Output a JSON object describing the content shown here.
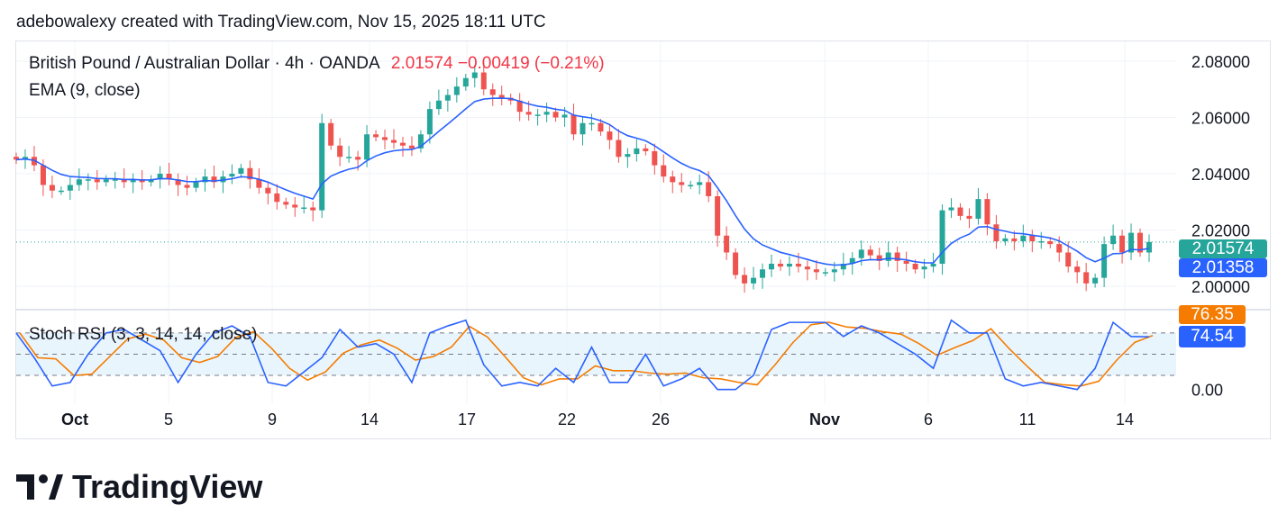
{
  "caption": "adebowalexy created with TradingView.com, Nov 15, 2025 18:11 UTC",
  "legend": {
    "symbol": "British Pound / Australian Dollar · 4h · OANDA",
    "price": "2.01574",
    "change": "−0.00419 (−0.21%)",
    "ema": "EMA (9, close)",
    "stoch": "Stoch RSI (3, 3, 14, 14, close)"
  },
  "badges": {
    "last_price": "2.01574",
    "ema_value": "2.01358",
    "stoch_d": "76.35",
    "stoch_k": "74.54"
  },
  "colors": {
    "up": "#26a69a",
    "down": "#ef5350",
    "ema": "#2962ff",
    "k": "#2962ff",
    "d": "#f57c00",
    "last": "#26a69a",
    "band": "#e3f2fd"
  },
  "logo": {
    "text": "TradingView"
  },
  "chart_data": [
    {
      "type": "candlestick",
      "title": "British Pound / Australian Dollar · 4h · OANDA",
      "yticks": [
        "2.08000",
        "2.06000",
        "2.04000",
        "2.02000",
        "2.00000"
      ],
      "ylim": [
        2.0,
        2.08
      ],
      "xticks": [
        "Oct",
        "5",
        "9",
        "14",
        "17",
        "22",
        "26",
        "Nov",
        "6",
        "11",
        "14"
      ],
      "close": [
        2.045,
        2.046,
        2.043,
        2.036,
        2.034,
        2.034,
        2.036,
        2.038,
        2.038,
        2.037,
        2.038,
        2.038,
        2.037,
        2.038,
        2.037,
        2.038,
        2.04,
        2.038,
        2.036,
        2.035,
        2.037,
        2.039,
        2.037,
        2.039,
        2.04,
        2.042,
        2.038,
        2.035,
        2.033,
        2.03,
        2.029,
        2.028,
        2.028,
        2.027,
        2.058,
        2.05,
        2.046,
        2.046,
        2.045,
        2.054,
        2.053,
        2.052,
        2.051,
        2.05,
        2.049,
        2.054,
        2.063,
        2.066,
        2.068,
        2.071,
        2.074,
        2.076,
        2.07,
        2.068,
        2.067,
        2.066,
        2.062,
        2.061,
        2.061,
        2.062,
        2.06,
        2.061,
        2.054,
        2.058,
        2.058,
        2.055,
        2.052,
        2.046,
        2.047,
        2.049,
        2.048,
        2.043,
        2.039,
        2.037,
        2.036,
        2.036,
        2.037,
        2.032,
        2.018,
        2.012,
        2.004,
        2.001,
        2.003,
        2.006,
        2.008,
        2.007,
        2.008,
        2.007,
        2.006,
        2.005,
        2.005,
        2.006,
        2.008,
        2.01,
        2.013,
        2.011,
        2.009,
        2.012,
        2.009,
        2.008,
        2.006,
        2.007,
        2.008,
        2.027,
        2.028,
        2.025,
        2.024,
        2.031,
        2.022,
        2.016,
        2.017,
        2.016,
        2.018,
        2.016,
        2.016,
        2.015,
        2.012,
        2.007,
        2.005,
        2.001,
        2.003,
        2.015,
        2.018,
        2.012,
        2.019,
        2.012,
        2.01574
      ],
      "series": [
        {
          "name": "EMA (9, close)",
          "last": 2.01358
        }
      ]
    },
    {
      "type": "line",
      "title": "Stoch RSI (3, 3, 14, 14, close)",
      "ylim": [
        0,
        100
      ],
      "yticks": [
        "0.00"
      ],
      "bands": [
        20,
        80
      ],
      "k": [
        80,
        45,
        5,
        10,
        50,
        80,
        85,
        70,
        55,
        10,
        50,
        80,
        90,
        75,
        10,
        5,
        25,
        45,
        85,
        60,
        65,
        50,
        10,
        80,
        90,
        98,
        35,
        5,
        10,
        5,
        30,
        10,
        60,
        10,
        10,
        50,
        5,
        15,
        30,
        0,
        0,
        20,
        85,
        95,
        95,
        95,
        75,
        90,
        80,
        65,
        50,
        30,
        98,
        80,
        80,
        15,
        5,
        10,
        5,
        0,
        30,
        95,
        75,
        74.54
      ],
      "d_last": 76.35
    }
  ]
}
